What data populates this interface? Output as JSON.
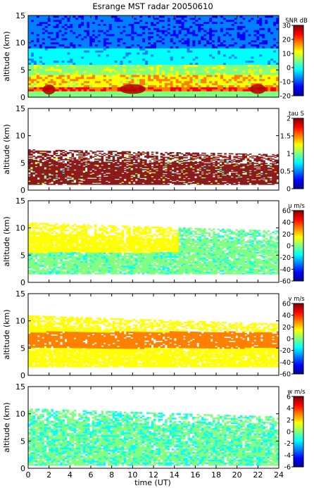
{
  "title": "Esrange MST radar 20050610",
  "xlabel": "time (UT)",
  "colors": {
    "jet": [
      "#00008f",
      "#0000ff",
      "#0080ff",
      "#00ffff",
      "#80ff80",
      "#ffff00",
      "#ff8000",
      "#ff0000",
      "#800000"
    ],
    "tau_fill": "#8b1a1a"
  },
  "chart_data": [
    {
      "type": "heatmap",
      "ylabel": "altitude (km)",
      "x": [
        0,
        2,
        4,
        6,
        8,
        10,
        12,
        14,
        16,
        18,
        20,
        22,
        24
      ],
      "xlim": [
        0,
        24
      ],
      "y": [
        0,
        5,
        10,
        15
      ],
      "ylim": [
        0,
        15
      ],
      "colorbar": {
        "label": "SNR dB",
        "ticks": [
          -20,
          -10,
          0,
          10,
          20,
          30
        ],
        "range": [
          -20,
          30
        ]
      },
      "coverage": "full",
      "grid": false
    },
    {
      "type": "heatmap",
      "ylabel": "altitude (km)",
      "x": [
        0,
        2,
        4,
        6,
        8,
        10,
        12,
        14,
        16,
        18,
        20,
        22,
        24
      ],
      "xlim": [
        0,
        24
      ],
      "y": [
        0,
        5,
        10,
        15
      ],
      "ylim": [
        0,
        15
      ],
      "colorbar": {
        "label": "tau S",
        "ticks": [
          0,
          0.5,
          1,
          1.5,
          2
        ],
        "range": [
          0,
          2
        ]
      },
      "coverage_altitude_km": [
        1,
        7.5
      ],
      "grid": false
    },
    {
      "type": "heatmap",
      "ylabel": "altitude (km)",
      "x": [
        0,
        2,
        4,
        6,
        8,
        10,
        12,
        14,
        16,
        18,
        20,
        22,
        24
      ],
      "xlim": [
        0,
        24
      ],
      "y": [
        0,
        5,
        10,
        15
      ],
      "ylim": [
        0,
        15
      ],
      "colorbar": {
        "label": "u m/s",
        "ticks": [
          -60,
          -40,
          -20,
          0,
          20,
          40,
          60
        ],
        "range": [
          -60,
          60
        ]
      },
      "coverage_altitude_km": [
        1.5,
        11
      ],
      "grid": false
    },
    {
      "type": "heatmap",
      "ylabel": "altitude (km)",
      "x": [
        0,
        2,
        4,
        6,
        8,
        10,
        12,
        14,
        16,
        18,
        20,
        22,
        24
      ],
      "xlim": [
        0,
        24
      ],
      "y": [
        0,
        5,
        10,
        15
      ],
      "ylim": [
        0,
        15
      ],
      "colorbar": {
        "label": "v m/s",
        "ticks": [
          -60,
          -40,
          -20,
          0,
          20,
          40,
          60
        ],
        "range": [
          -60,
          60
        ]
      },
      "coverage_altitude_km": [
        1.5,
        11
      ],
      "grid": false
    },
    {
      "type": "heatmap",
      "ylabel": "altitude (km)",
      "x": [
        0,
        2,
        4,
        6,
        8,
        10,
        12,
        14,
        16,
        18,
        20,
        22,
        24
      ],
      "xlim": [
        0,
        24
      ],
      "y": [
        0,
        5,
        10,
        15
      ],
      "ylim": [
        0,
        15
      ],
      "colorbar": {
        "label": "w m/s",
        "ticks": [
          -6,
          -4,
          -2,
          0,
          2,
          4,
          6
        ],
        "range": [
          -6,
          6
        ]
      },
      "coverage_altitude_km": [
        0.5,
        11
      ],
      "grid": false
    }
  ]
}
